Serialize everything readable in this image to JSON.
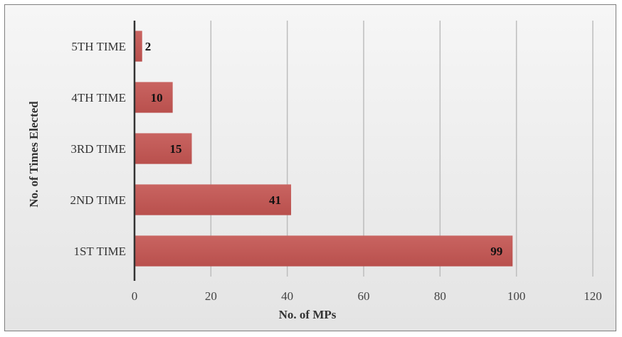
{
  "chart_data": {
    "type": "bar",
    "orientation": "horizontal",
    "categories": [
      "1ST TIME",
      "2ND TIME",
      "3RD TIME",
      "4TH TIME",
      "5TH TIME"
    ],
    "values": [
      99,
      41,
      15,
      10,
      2
    ],
    "data_labels": [
      "99",
      "41",
      "15",
      "10",
      "2"
    ],
    "xlabel": "No. of MPs",
    "ylabel": "No. of Times Elected",
    "xlim": [
      0,
      120
    ],
    "xticks": [
      0,
      20,
      40,
      60,
      80,
      100,
      120
    ],
    "xtick_labels": [
      "0",
      "20",
      "40",
      "60",
      "80",
      "100",
      "120"
    ],
    "grid": "vertical",
    "legend": "none",
    "bar_color": "#c0504d"
  }
}
